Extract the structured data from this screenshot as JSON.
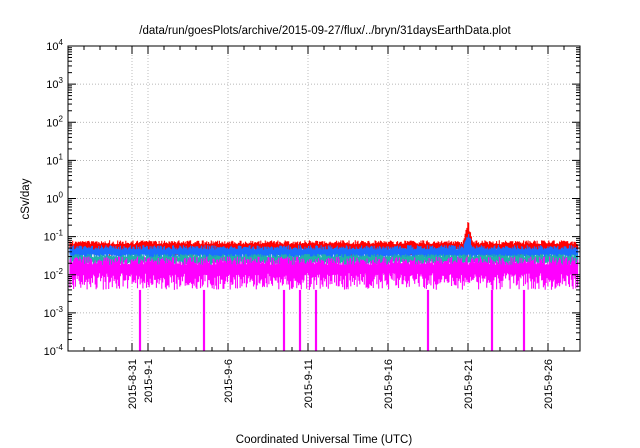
{
  "chart_data": {
    "type": "line",
    "title": "/data/run/goesPlots/archive/2015-09-27/flux/../bryn/31daysEarthData.plot",
    "xlabel": "Coordinated Universal Time (UTC)",
    "ylabel": "cSv/day",
    "y_scale": "log",
    "ylim": [
      0.0001,
      10000
    ],
    "xlim": [
      "2015-08-27",
      "2015-09-28"
    ],
    "grid": true,
    "legend": "none",
    "x_tick_labels": [
      {
        "date": "2015-08-31",
        "label": "2015-8-31"
      },
      {
        "date": "2015-09-01",
        "label": "2015-9-1"
      },
      {
        "date": "2015-09-06",
        "label": "2015-9-6"
      },
      {
        "date": "2015-09-11",
        "label": "2015-9-11"
      },
      {
        "date": "2015-09-16",
        "label": "2015-9-16"
      },
      {
        "date": "2015-09-21",
        "label": "2015-9-21"
      },
      {
        "date": "2015-09-26",
        "label": "2015-9-26"
      }
    ],
    "y_ticks": [
      {
        "value": 0.0001,
        "base": "10",
        "exp": "-4"
      },
      {
        "value": 0.001,
        "base": "10",
        "exp": "-3"
      },
      {
        "value": 0.01,
        "base": "10",
        "exp": "-2"
      },
      {
        "value": 0.1,
        "base": "10",
        "exp": "-1"
      },
      {
        "value": 1,
        "base": "10",
        "exp": "0"
      },
      {
        "value": 10,
        "base": "10",
        "exp": "1"
      },
      {
        "value": 100,
        "base": "10",
        "exp": "2"
      },
      {
        "value": 1000,
        "base": "10",
        "exp": "3"
      },
      {
        "value": 10000,
        "base": "10",
        "exp": "4"
      }
    ],
    "series": [
      {
        "color": "#ff0000",
        "typical_range": [
          0.03,
          0.08
        ],
        "peak": {
          "date": "2015-09-21",
          "value": 0.3
        }
      },
      {
        "color": "#1a6fff",
        "typical_range": [
          0.02,
          0.06
        ],
        "peak": {
          "date": "2015-09-21",
          "value": 0.15
        }
      },
      {
        "color": "#20b2aa",
        "typical_range": [
          0.015,
          0.035
        ]
      },
      {
        "color": "#ff00ff",
        "typical_range": [
          0.004,
          0.03
        ],
        "dropouts": [
          "2015-08-31",
          "2015-09-04",
          "2015-09-09",
          "2015-09-10",
          "2015-09-11",
          "2015-09-18",
          "2015-09-22",
          "2015-09-24"
        ]
      }
    ]
  }
}
